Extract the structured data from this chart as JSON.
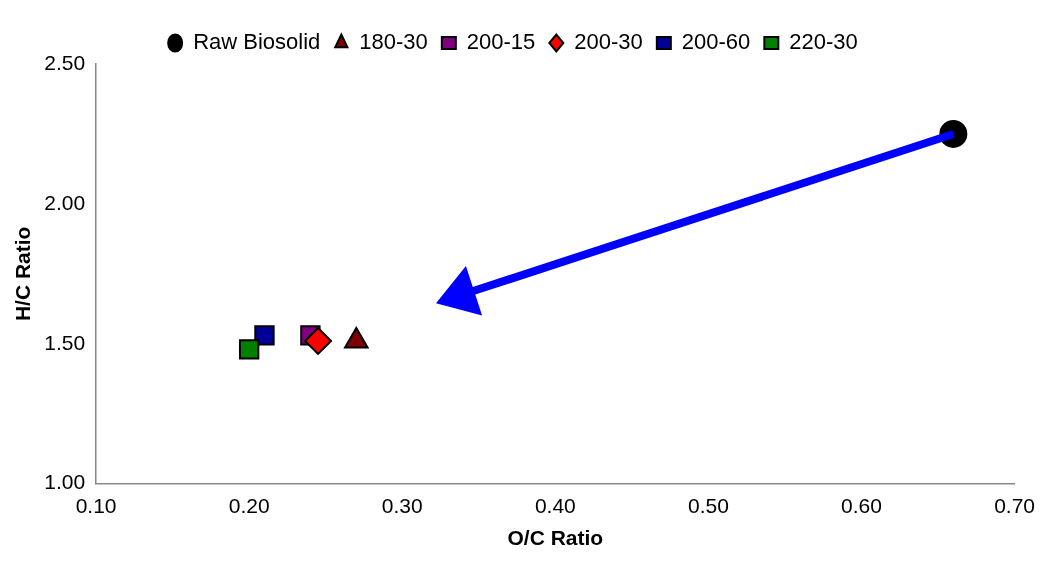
{
  "chart_data": {
    "type": "scatter",
    "xlabel": "O/C Ratio",
    "ylabel": "H/C Ratio",
    "xlim": [
      0.1,
      0.7
    ],
    "xticks": [
      {
        "value": 0.1,
        "label": "0.10"
      },
      {
        "value": 0.2,
        "label": "0.20"
      },
      {
        "value": 0.3,
        "label": "0.30"
      },
      {
        "value": 0.4,
        "label": "0.40"
      },
      {
        "value": 0.5,
        "label": "0.50"
      },
      {
        "value": 0.6,
        "label": "0.60"
      },
      {
        "value": 0.7,
        "label": "0.70"
      }
    ],
    "ylim": [
      1,
      2.5
    ],
    "yticks": [
      {
        "value": 1,
        "label": "1.00"
      },
      {
        "value": 1.5,
        "label": "1.50"
      },
      {
        "value": 2,
        "label": "2.00"
      },
      {
        "value": 2.5,
        "label": "2.50"
      }
    ],
    "grid": false,
    "legend": "top",
    "series": [
      {
        "name": "Raw Biosolid",
        "color": "#000000",
        "marker": "circle",
        "x": [
          0.66
        ],
        "values": [
          2.25
        ]
      },
      {
        "name": "180-30",
        "color": "#800000",
        "marker": "triangle",
        "x": [
          0.27
        ],
        "values": [
          1.51
        ]
      },
      {
        "name": "200-15",
        "color": "#800080",
        "marker": "square",
        "x": [
          0.24
        ],
        "values": [
          1.53
        ]
      },
      {
        "name": "200-30",
        "color": "#ff0000",
        "marker": "diamond",
        "x": [
          0.245
        ],
        "values": [
          1.51
        ]
      },
      {
        "name": "200-60",
        "color": "#000099",
        "marker": "square",
        "x": [
          0.21
        ],
        "values": [
          1.53
        ]
      },
      {
        "name": "220-30",
        "color": "#008000",
        "marker": "square",
        "x": [
          0.2
        ],
        "values": [
          1.48
        ]
      }
    ]
  }
}
